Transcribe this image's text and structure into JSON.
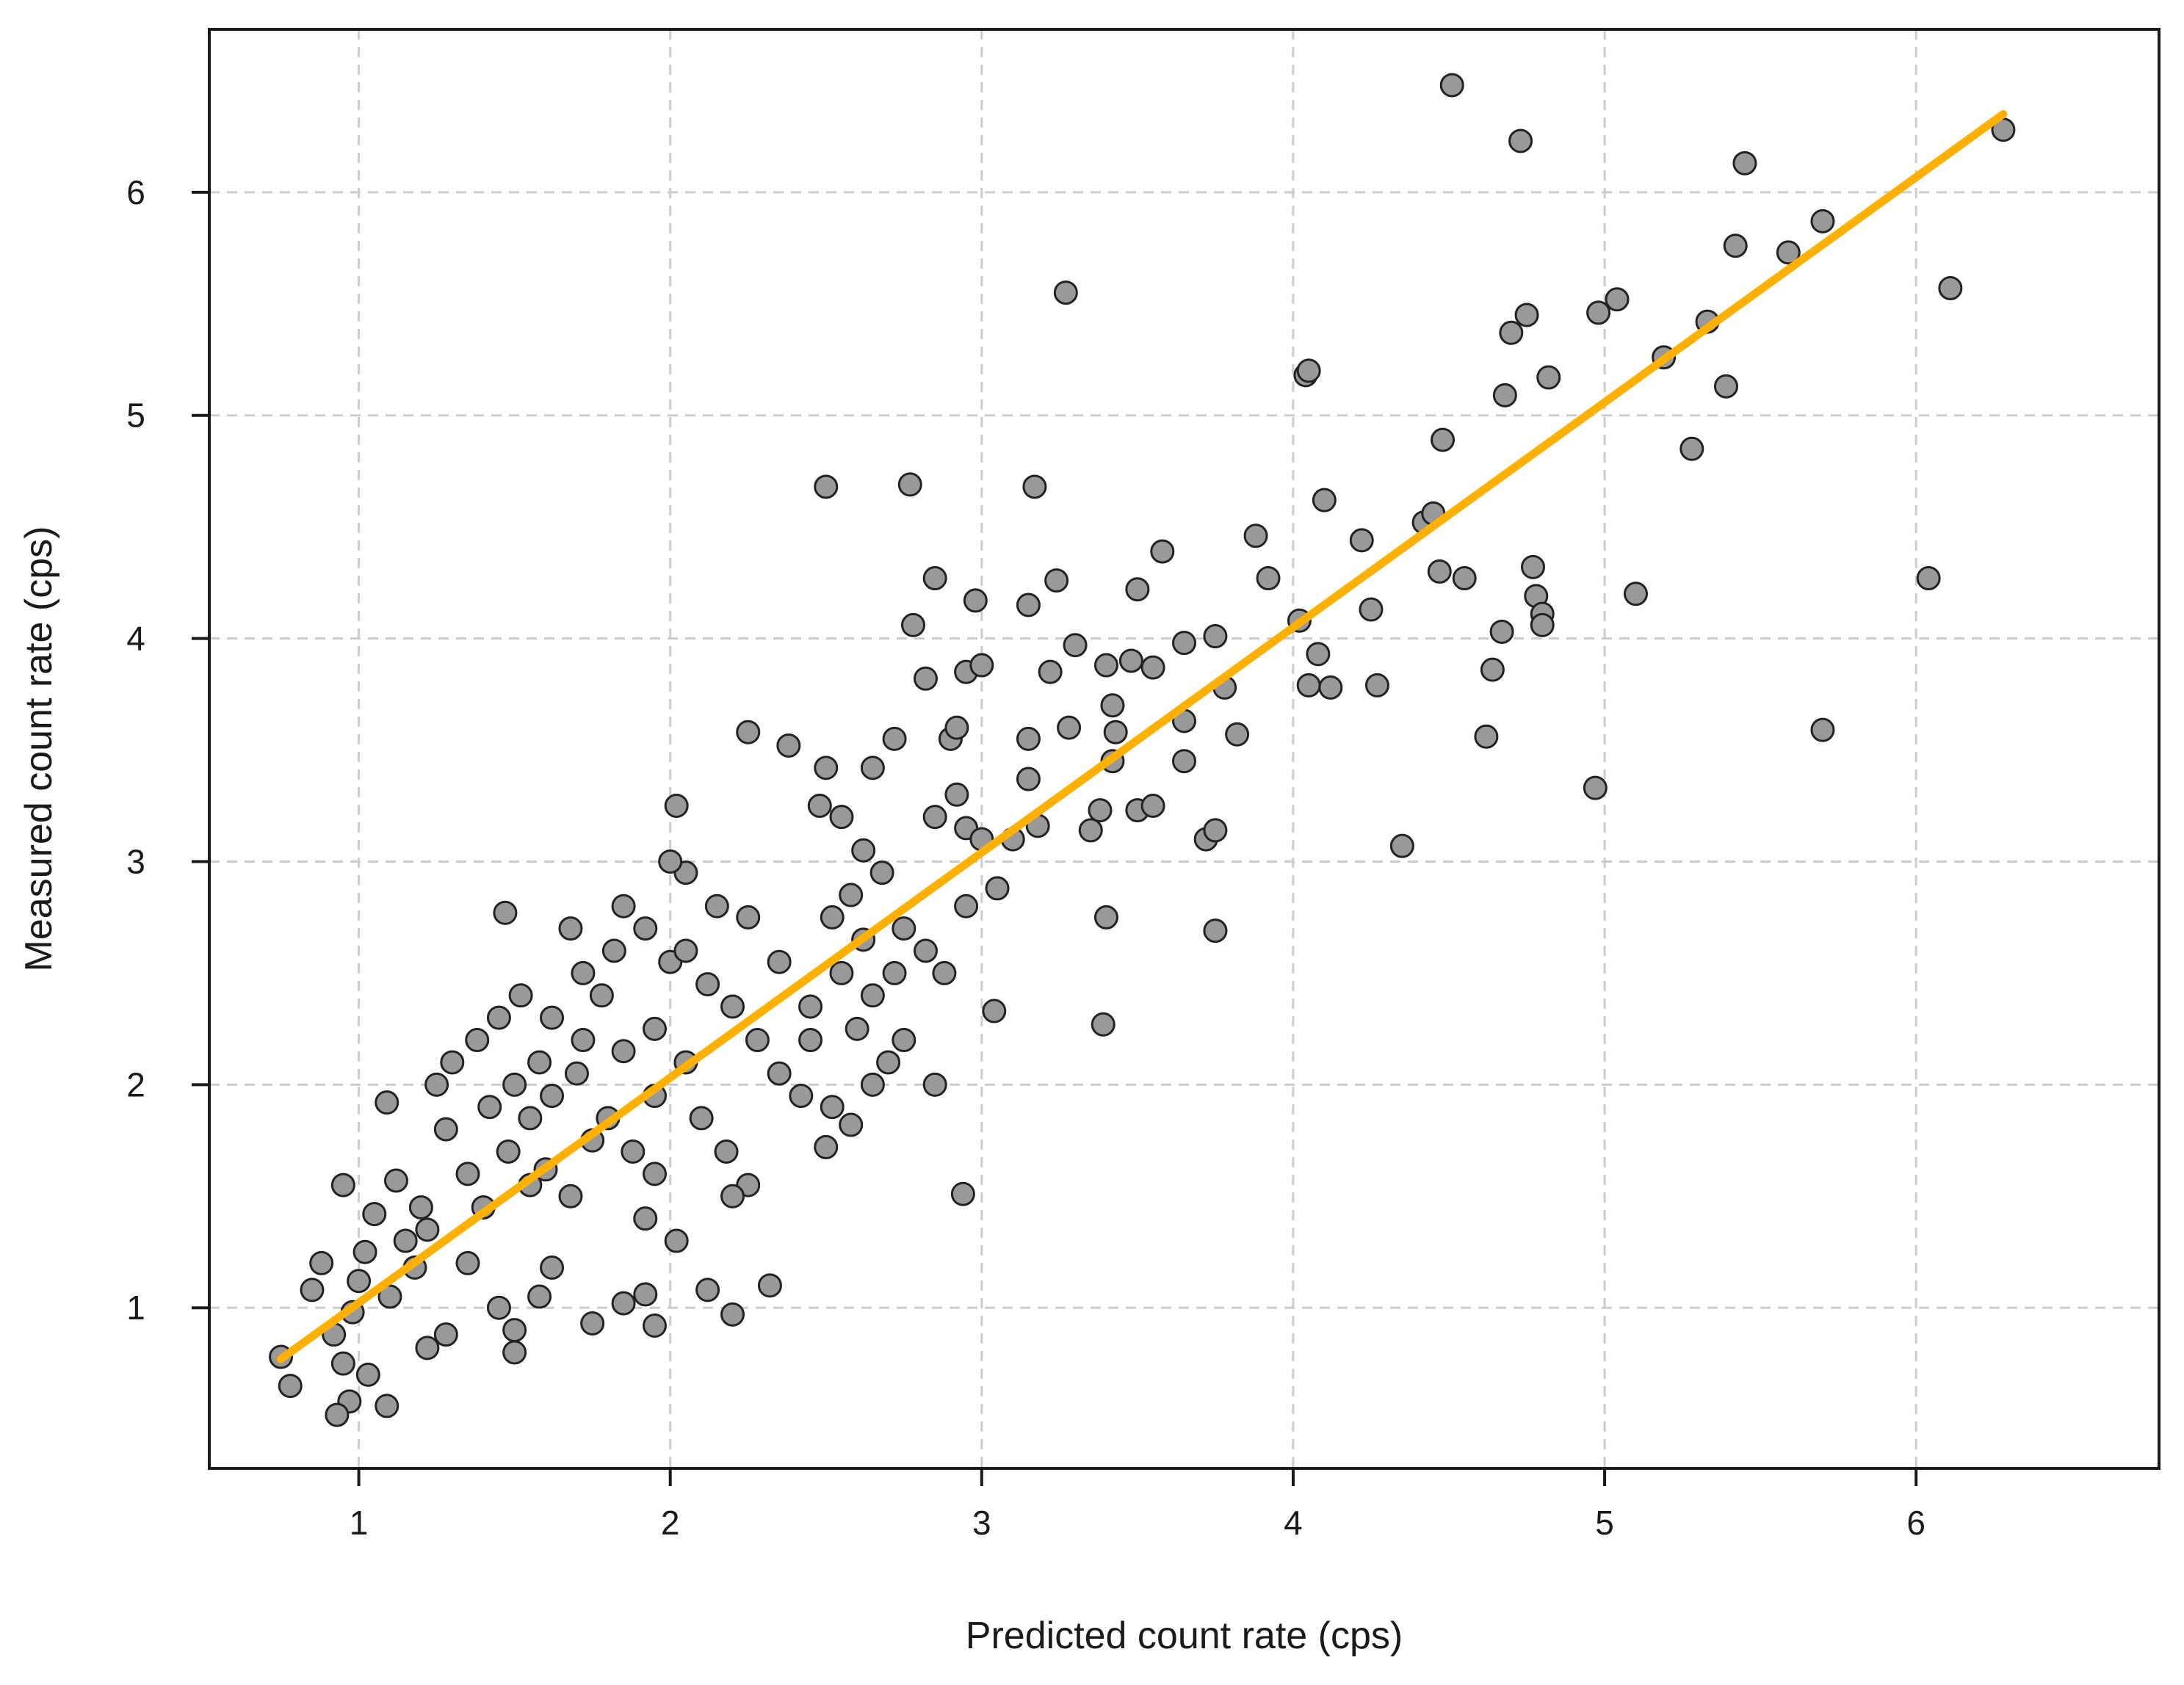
{
  "chart_data": {
    "type": "scatter",
    "title": "",
    "xlabel": "Predicted count rate (cps)",
    "ylabel": "Measured count rate (cps)",
    "xlim": [
      0.52,
      6.78
    ],
    "ylim": [
      0.28,
      6.73
    ],
    "xticks": [
      1,
      2,
      3,
      4,
      5,
      6
    ],
    "yticks": [
      1,
      2,
      3,
      4,
      5,
      6
    ],
    "grid": true,
    "legend": "none",
    "colors": {
      "points": "#999999",
      "point_outline": "#222222",
      "fit_line": "#ffb000",
      "grid": "#cccccc"
    },
    "fit_line": {
      "x": [
        0.75,
        6.28
      ],
      "y": [
        0.77,
        6.35
      ]
    },
    "series": [
      {
        "points": [
          [
            0.95,
            1.55
          ],
          [
            1.09,
            1.92
          ],
          [
            1.47,
            2.77
          ],
          [
            1.12,
            1.57
          ],
          [
            1.25,
            2.0
          ],
          [
            1.3,
            2.1
          ],
          [
            1.38,
            2.2
          ],
          [
            1.45,
            2.3
          ],
          [
            1.28,
            1.8
          ],
          [
            1.2,
            1.45
          ],
          [
            1.05,
            1.42
          ],
          [
            1.15,
            1.3
          ],
          [
            0.88,
            1.2
          ],
          [
            0.85,
            1.08
          ],
          [
            0.92,
            0.88
          ],
          [
            0.95,
            0.75
          ],
          [
            0.97,
            0.58
          ],
          [
            0.93,
            0.52
          ],
          [
            1.09,
            0.56
          ],
          [
            0.78,
            0.65
          ],
          [
            0.75,
            0.78
          ],
          [
            1.03,
            0.7
          ],
          [
            1.22,
            0.82
          ],
          [
            1.28,
            0.88
          ],
          [
            1.5,
            0.8
          ],
          [
            1.5,
            0.9
          ],
          [
            1.58,
            1.05
          ],
          [
            1.45,
            1.0
          ],
          [
            1.75,
            0.93
          ],
          [
            1.95,
            0.92
          ],
          [
            2.12,
            1.08
          ],
          [
            2.2,
            0.97
          ],
          [
            2.32,
            1.1
          ],
          [
            1.85,
            1.02
          ],
          [
            1.92,
            1.06
          ],
          [
            1.62,
            1.18
          ],
          [
            1.35,
            1.2
          ],
          [
            1.1,
            1.05
          ],
          [
            1.0,
            1.12
          ],
          [
            0.98,
            0.98
          ],
          [
            1.02,
            1.25
          ],
          [
            1.18,
            1.18
          ],
          [
            1.22,
            1.35
          ],
          [
            1.4,
            1.45
          ],
          [
            1.55,
            1.55
          ],
          [
            1.35,
            1.6
          ],
          [
            1.48,
            1.7
          ],
          [
            1.6,
            1.62
          ],
          [
            1.68,
            1.5
          ],
          [
            1.75,
            1.75
          ],
          [
            1.55,
            1.85
          ],
          [
            1.62,
            1.95
          ],
          [
            1.7,
            2.05
          ],
          [
            1.8,
            1.85
          ],
          [
            1.88,
            1.7
          ],
          [
            1.95,
            1.6
          ],
          [
            1.85,
            2.15
          ],
          [
            1.95,
            2.25
          ],
          [
            2.05,
            2.1
          ],
          [
            1.95,
            1.95
          ],
          [
            2.1,
            1.85
          ],
          [
            2.18,
            1.7
          ],
          [
            2.25,
            1.55
          ],
          [
            2.2,
            1.5
          ],
          [
            2.02,
            1.3
          ],
          [
            1.92,
            1.4
          ],
          [
            2.0,
            2.55
          ],
          [
            1.92,
            2.7
          ],
          [
            2.05,
            2.6
          ],
          [
            2.12,
            2.45
          ],
          [
            2.2,
            2.35
          ],
          [
            2.28,
            2.2
          ],
          [
            2.35,
            2.05
          ],
          [
            2.42,
            1.95
          ],
          [
            2.45,
            2.2
          ],
          [
            2.35,
            2.55
          ],
          [
            2.25,
            2.75
          ],
          [
            2.15,
            2.8
          ],
          [
            2.05,
            2.95
          ],
          [
            2.02,
            3.25
          ],
          [
            2.0,
            3.0
          ],
          [
            1.85,
            2.8
          ],
          [
            1.78,
            2.4
          ],
          [
            1.72,
            2.2
          ],
          [
            1.62,
            2.3
          ],
          [
            1.58,
            2.1
          ],
          [
            1.5,
            2.0
          ],
          [
            1.42,
            1.9
          ],
          [
            1.68,
            2.7
          ],
          [
            1.82,
            2.6
          ],
          [
            1.72,
            2.5
          ],
          [
            1.52,
            2.4
          ],
          [
            2.25,
            3.58
          ],
          [
            2.38,
            3.52
          ],
          [
            2.5,
            3.42
          ],
          [
            2.48,
            3.25
          ],
          [
            2.55,
            3.2
          ],
          [
            2.62,
            3.05
          ],
          [
            2.68,
            2.95
          ],
          [
            2.58,
            2.85
          ],
          [
            2.52,
            2.75
          ],
          [
            2.62,
            2.65
          ],
          [
            2.75,
            2.7
          ],
          [
            2.82,
            2.6
          ],
          [
            2.72,
            2.5
          ],
          [
            2.65,
            2.4
          ],
          [
            2.55,
            2.5
          ],
          [
            2.45,
            2.35
          ],
          [
            2.6,
            2.25
          ],
          [
            2.7,
            2.1
          ],
          [
            2.52,
            1.9
          ],
          [
            2.58,
            1.82
          ],
          [
            2.5,
            1.72
          ],
          [
            2.65,
            2.0
          ],
          [
            2.75,
            2.2
          ],
          [
            2.85,
            2.0
          ],
          [
            2.88,
            2.5
          ],
          [
            2.95,
            2.8
          ],
          [
            3.05,
            2.88
          ],
          [
            3.04,
            2.33
          ],
          [
            2.85,
            3.2
          ],
          [
            2.92,
            3.3
          ],
          [
            2.95,
            3.15
          ],
          [
            3.0,
            3.1
          ],
          [
            2.9,
            3.55
          ],
          [
            2.95,
            3.85
          ],
          [
            3.0,
            3.88
          ],
          [
            2.98,
            4.17
          ],
          [
            2.78,
            4.06
          ],
          [
            2.72,
            3.55
          ],
          [
            2.65,
            3.42
          ],
          [
            2.82,
            3.82
          ],
          [
            2.85,
            4.27
          ],
          [
            2.92,
            3.6
          ],
          [
            2.5,
            4.68
          ],
          [
            2.77,
            4.69
          ],
          [
            2.94,
            1.51
          ],
          [
            3.17,
            4.68
          ],
          [
            3.15,
            4.15
          ],
          [
            3.22,
            3.85
          ],
          [
            3.24,
            4.26
          ],
          [
            3.27,
            5.55
          ],
          [
            3.3,
            3.97
          ],
          [
            3.28,
            3.6
          ],
          [
            3.15,
            3.55
          ],
          [
            3.15,
            3.37
          ],
          [
            3.18,
            3.16
          ],
          [
            3.1,
            3.1
          ],
          [
            3.35,
            3.14
          ],
          [
            3.4,
            3.88
          ],
          [
            3.42,
            3.7
          ],
          [
            3.43,
            3.58
          ],
          [
            3.42,
            3.45
          ],
          [
            3.38,
            3.23
          ],
          [
            3.5,
            3.23
          ],
          [
            3.48,
            3.9
          ],
          [
            3.5,
            4.22
          ],
          [
            3.55,
            3.87
          ],
          [
            3.58,
            4.39
          ],
          [
            3.55,
            3.25
          ],
          [
            3.4,
            2.75
          ],
          [
            3.39,
            2.27
          ],
          [
            3.65,
            3.98
          ],
          [
            3.65,
            3.63
          ],
          [
            3.65,
            3.45
          ],
          [
            3.75,
            4.01
          ],
          [
            3.78,
            3.78
          ],
          [
            3.72,
            3.1
          ],
          [
            3.75,
            3.14
          ],
          [
            3.75,
            2.69
          ],
          [
            3.82,
            3.57
          ],
          [
            3.88,
            4.46
          ],
          [
            3.92,
            4.27
          ],
          [
            4.02,
            4.08
          ],
          [
            4.04,
            5.18
          ],
          [
            4.05,
            5.2
          ],
          [
            4.05,
            3.79
          ],
          [
            4.08,
            3.93
          ],
          [
            4.1,
            4.62
          ],
          [
            4.12,
            3.78
          ],
          [
            4.22,
            4.44
          ],
          [
            4.25,
            4.13
          ],
          [
            4.27,
            3.79
          ],
          [
            4.35,
            3.07
          ],
          [
            4.42,
            4.52
          ],
          [
            4.45,
            4.56
          ],
          [
            4.47,
            4.3
          ],
          [
            4.48,
            4.89
          ],
          [
            4.51,
            6.48
          ],
          [
            4.55,
            4.27
          ],
          [
            4.62,
            3.56
          ],
          [
            4.64,
            3.86
          ],
          [
            4.67,
            4.03
          ],
          [
            4.68,
            5.09
          ],
          [
            4.7,
            5.37
          ],
          [
            4.73,
            6.23
          ],
          [
            4.75,
            5.45
          ],
          [
            4.77,
            4.32
          ],
          [
            4.78,
            4.19
          ],
          [
            4.8,
            4.11
          ],
          [
            4.8,
            4.06
          ],
          [
            4.82,
            5.17
          ],
          [
            4.97,
            3.33
          ],
          [
            4.98,
            5.46
          ],
          [
            5.04,
            5.52
          ],
          [
            5.1,
            4.2
          ],
          [
            5.19,
            5.26
          ],
          [
            5.28,
            4.85
          ],
          [
            5.33,
            5.42
          ],
          [
            5.39,
            5.13
          ],
          [
            5.42,
            5.76
          ],
          [
            5.45,
            6.13
          ],
          [
            5.59,
            5.73
          ],
          [
            5.7,
            5.87
          ],
          [
            5.7,
            3.59
          ],
          [
            6.04,
            4.27
          ],
          [
            6.11,
            5.57
          ],
          [
            6.28,
            6.28
          ]
        ]
      }
    ]
  }
}
